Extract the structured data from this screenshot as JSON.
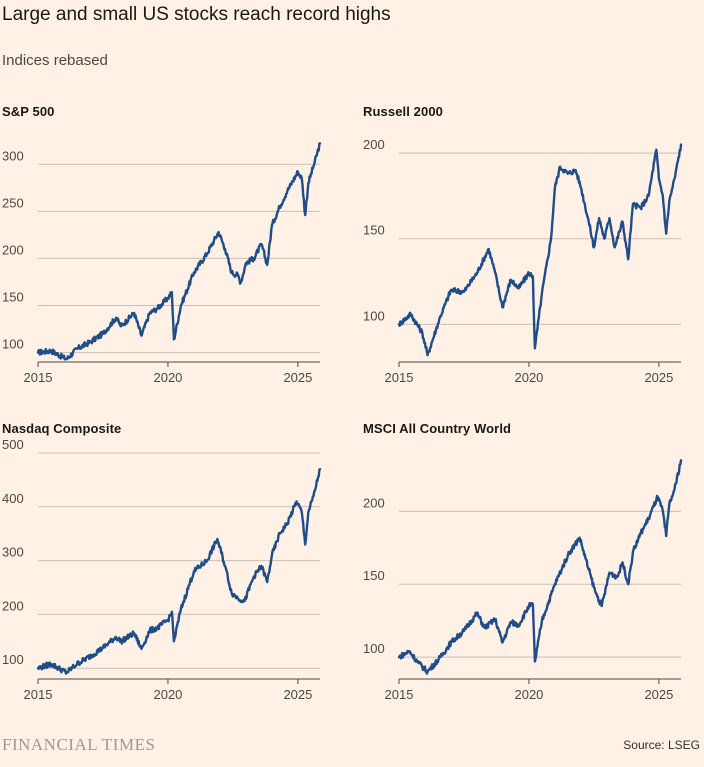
{
  "title": "Large and small US stocks reach record highs",
  "subtitle": "Indices rebased",
  "footer": {
    "logo": "FINANCIAL TIMES",
    "source": "Source: LSEG"
  },
  "colors": {
    "line": "#204d87",
    "grid": "#c9bfb6",
    "axis": "#4d4845",
    "background": "#fff1e5"
  },
  "chart_data": [
    {
      "type": "line",
      "title": "S&P 500",
      "xlim": [
        2015,
        2025.85
      ],
      "ylim": [
        90,
        330
      ],
      "yticks": [
        100,
        150,
        200,
        250,
        300
      ],
      "xticks": [
        2015,
        2020,
        2025
      ],
      "x": [
        2015,
        2015.5,
        2016.1,
        2016.5,
        2017,
        2017.5,
        2018,
        2018.2,
        2018.7,
        2018.98,
        2019.3,
        2019.6,
        2020,
        2020.15,
        2020.23,
        2020.5,
        2021,
        2021.5,
        2021.95,
        2022.2,
        2022.45,
        2022.7,
        2022.8,
        2023,
        2023.3,
        2023.6,
        2023.82,
        2024,
        2024.3,
        2024.6,
        2025,
        2025.15,
        2025.28,
        2025.4,
        2025.6,
        2025.85
      ],
      "series": [
        {
          "name": "S&P 500",
          "values": [
            100,
            102,
            93,
            104,
            111,
            120,
            137,
            128,
            142,
            118,
            142,
            147,
            158,
            164,
            114,
            150,
            185,
            205,
            228,
            210,
            185,
            182,
            174,
            195,
            200,
            215,
            193,
            235,
            255,
            272,
            292,
            285,
            246,
            280,
            298,
            322
          ]
        }
      ]
    },
    {
      "type": "line",
      "title": "Russell 2000",
      "xlim": [
        2015,
        2025.85
      ],
      "ylim": [
        78,
        210
      ],
      "yticks": [
        100,
        150,
        200
      ],
      "xticks": [
        2015,
        2020,
        2025
      ],
      "x": [
        2015,
        2015.45,
        2015.9,
        2016.1,
        2016.6,
        2017,
        2017.5,
        2018,
        2018.45,
        2018.7,
        2018.98,
        2019.3,
        2019.6,
        2020,
        2020.15,
        2020.23,
        2020.5,
        2020.85,
        2021,
        2021.2,
        2021.5,
        2021.8,
        2022,
        2022.3,
        2022.5,
        2022.7,
        2022.9,
        2023.1,
        2023.3,
        2023.6,
        2023.82,
        2024,
        2024.3,
        2024.6,
        2024.9,
        2025,
        2025.15,
        2025.28,
        2025.4,
        2025.6,
        2025.85
      ],
      "series": [
        {
          "name": "Russell 2000",
          "values": [
            100,
            106,
            95,
            82,
            105,
            120,
            119,
            130,
            144,
            130,
            110,
            126,
            121,
            130,
            128,
            86,
            118,
            150,
            180,
            192,
            188,
            190,
            180,
            160,
            145,
            162,
            150,
            162,
            145,
            160,
            138,
            170,
            168,
            175,
            202,
            185,
            175,
            153,
            172,
            185,
            205
          ]
        }
      ]
    },
    {
      "type": "line",
      "title": "Nasdaq Composite",
      "xlim": [
        2015,
        2025.85
      ],
      "ylim": [
        80,
        500
      ],
      "yticks": [
        100,
        200,
        300,
        400,
        500
      ],
      "xticks": [
        2015,
        2020,
        2025
      ],
      "x": [
        2015,
        2015.5,
        2016.1,
        2016.5,
        2017,
        2017.5,
        2018,
        2018.2,
        2018.7,
        2018.98,
        2019.3,
        2019.6,
        2020,
        2020.15,
        2020.23,
        2020.5,
        2021,
        2021.5,
        2021.9,
        2022.2,
        2022.45,
        2022.7,
        2022.95,
        2023.3,
        2023.6,
        2023.82,
        2024,
        2024.3,
        2024.6,
        2024.95,
        2025.15,
        2025.28,
        2025.4,
        2025.6,
        2025.85
      ],
      "series": [
        {
          "name": "Nasdaq Composite",
          "values": [
            100,
            108,
            92,
            108,
            122,
            138,
            158,
            150,
            165,
            136,
            170,
            175,
            190,
            205,
            150,
            210,
            280,
            300,
            340,
            290,
            240,
            230,
            225,
            270,
            290,
            260,
            310,
            350,
            370,
            410,
            390,
            330,
            390,
            420,
            470
          ]
        }
      ]
    },
    {
      "type": "line",
      "title": "MSCI All Country World",
      "xlim": [
        2015,
        2025.85
      ],
      "ylim": [
        85,
        240
      ],
      "yticks": [
        100,
        150,
        200
      ],
      "xticks": [
        2015,
        2020,
        2025
      ],
      "x": [
        2015,
        2015.4,
        2015.75,
        2016.1,
        2016.6,
        2017,
        2017.5,
        2018,
        2018.3,
        2018.7,
        2018.98,
        2019.3,
        2019.6,
        2020,
        2020.15,
        2020.23,
        2020.5,
        2021,
        2021.5,
        2021.95,
        2022.3,
        2022.55,
        2022.8,
        2023.1,
        2023.4,
        2023.6,
        2023.82,
        2024,
        2024.3,
        2024.6,
        2024.95,
        2025.15,
        2025.28,
        2025.4,
        2025.6,
        2025.85
      ],
      "series": [
        {
          "name": "MSCI All Country World",
          "values": [
            100,
            104,
            96,
            90,
            100,
            110,
            118,
            130,
            120,
            126,
            110,
            124,
            122,
            135,
            136,
            97,
            125,
            150,
            170,
            182,
            160,
            145,
            135,
            158,
            155,
            165,
            150,
            172,
            185,
            195,
            210,
            200,
            183,
            205,
            215,
            235
          ]
        }
      ]
    }
  ]
}
